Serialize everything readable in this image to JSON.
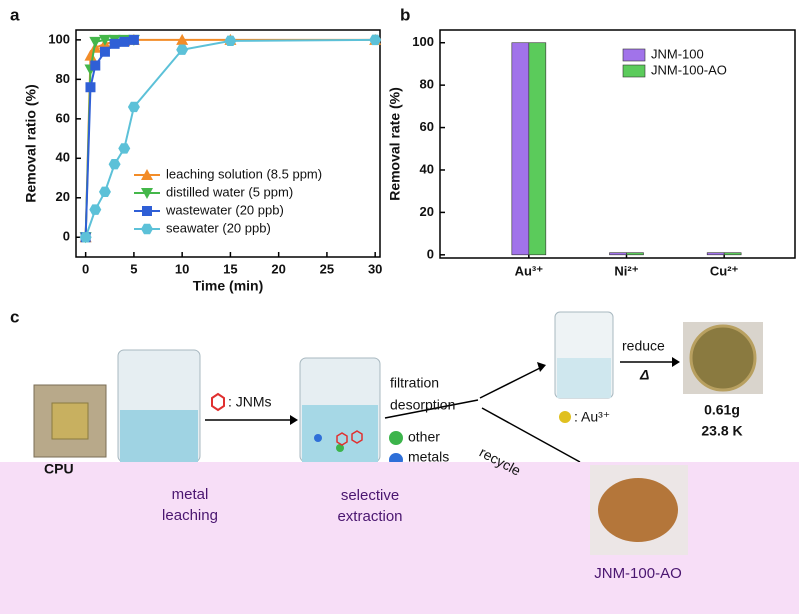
{
  "chart_data": [
    {
      "type": "line",
      "label": "a",
      "xlabel": "Time (min)",
      "ylabel": "Removal ratio (%)",
      "xlim": [
        -1,
        30.5
      ],
      "xticks": [
        0,
        5,
        10,
        15,
        20,
        25,
        30
      ],
      "ylim": [
        -10,
        105
      ],
      "yticks": [
        0,
        20,
        40,
        60,
        80,
        100
      ],
      "legend": "lower right",
      "series": [
        {
          "name": "leaching solution (8.5 ppm)",
          "color": "#f28c28",
          "marker": "triangle-up",
          "x": [
            0,
            0.5,
            1,
            2,
            3,
            4,
            5,
            10,
            15,
            30
          ],
          "values": [
            0,
            92,
            96,
            98,
            99,
            99.5,
            100,
            100,
            100,
            100
          ]
        },
        {
          "name": "distilled water (5 ppm)",
          "color": "#44b74a",
          "marker": "triangle-down",
          "x": [
            0,
            0.5,
            1,
            2,
            3,
            4,
            5
          ],
          "values": [
            0,
            85,
            99,
            100,
            100,
            100,
            100
          ]
        },
        {
          "name": "wastewater (20 ppb)",
          "color": "#2f5fd6",
          "marker": "square",
          "x": [
            0,
            0.5,
            1,
            2,
            3,
            4,
            5
          ],
          "values": [
            0,
            76,
            87,
            94,
            98,
            99,
            100
          ]
        },
        {
          "name": "seawater (20 ppb)",
          "color": "#5cc1d8",
          "marker": "hexagon",
          "x": [
            0,
            1,
            2,
            3,
            4,
            5,
            10,
            15,
            30
          ],
          "values": [
            0,
            14,
            23,
            37,
            45,
            66,
            95,
            99.5,
            100
          ]
        }
      ]
    },
    {
      "type": "bar",
      "label": "b",
      "ylabel": "Removal rate (%)",
      "categories": [
        "Au³⁺",
        "Ni²⁺",
        "Cu²⁺"
      ],
      "ylim": [
        -1.5,
        106
      ],
      "yticks": [
        0,
        20,
        40,
        60,
        80,
        100
      ],
      "legend": "upper right",
      "series": [
        {
          "name": "JNM-100",
          "color": "#a173ea",
          "values": [
            100,
            1,
            1
          ]
        },
        {
          "name": "JNM-100-AO",
          "color": "#5bcb5b",
          "values": [
            100,
            1,
            1
          ]
        }
      ]
    }
  ],
  "diagram": {
    "label": "c",
    "cpu": "CPU",
    "jnms": ": JNMs",
    "filtration": "filtration",
    "desorption": "desorption",
    "other_metals": [
      "other",
      "metals"
    ],
    "recycle": "recycle",
    "au": ": Au³⁺",
    "reduce": "reduce",
    "delta": "Δ",
    "mass": "0.61g",
    "value": "23.8 K",
    "metal_leaching": [
      "metal",
      "leaching"
    ],
    "selective_extraction": [
      "selective",
      "extraction"
    ],
    "product": "JNM-100-AO"
  }
}
